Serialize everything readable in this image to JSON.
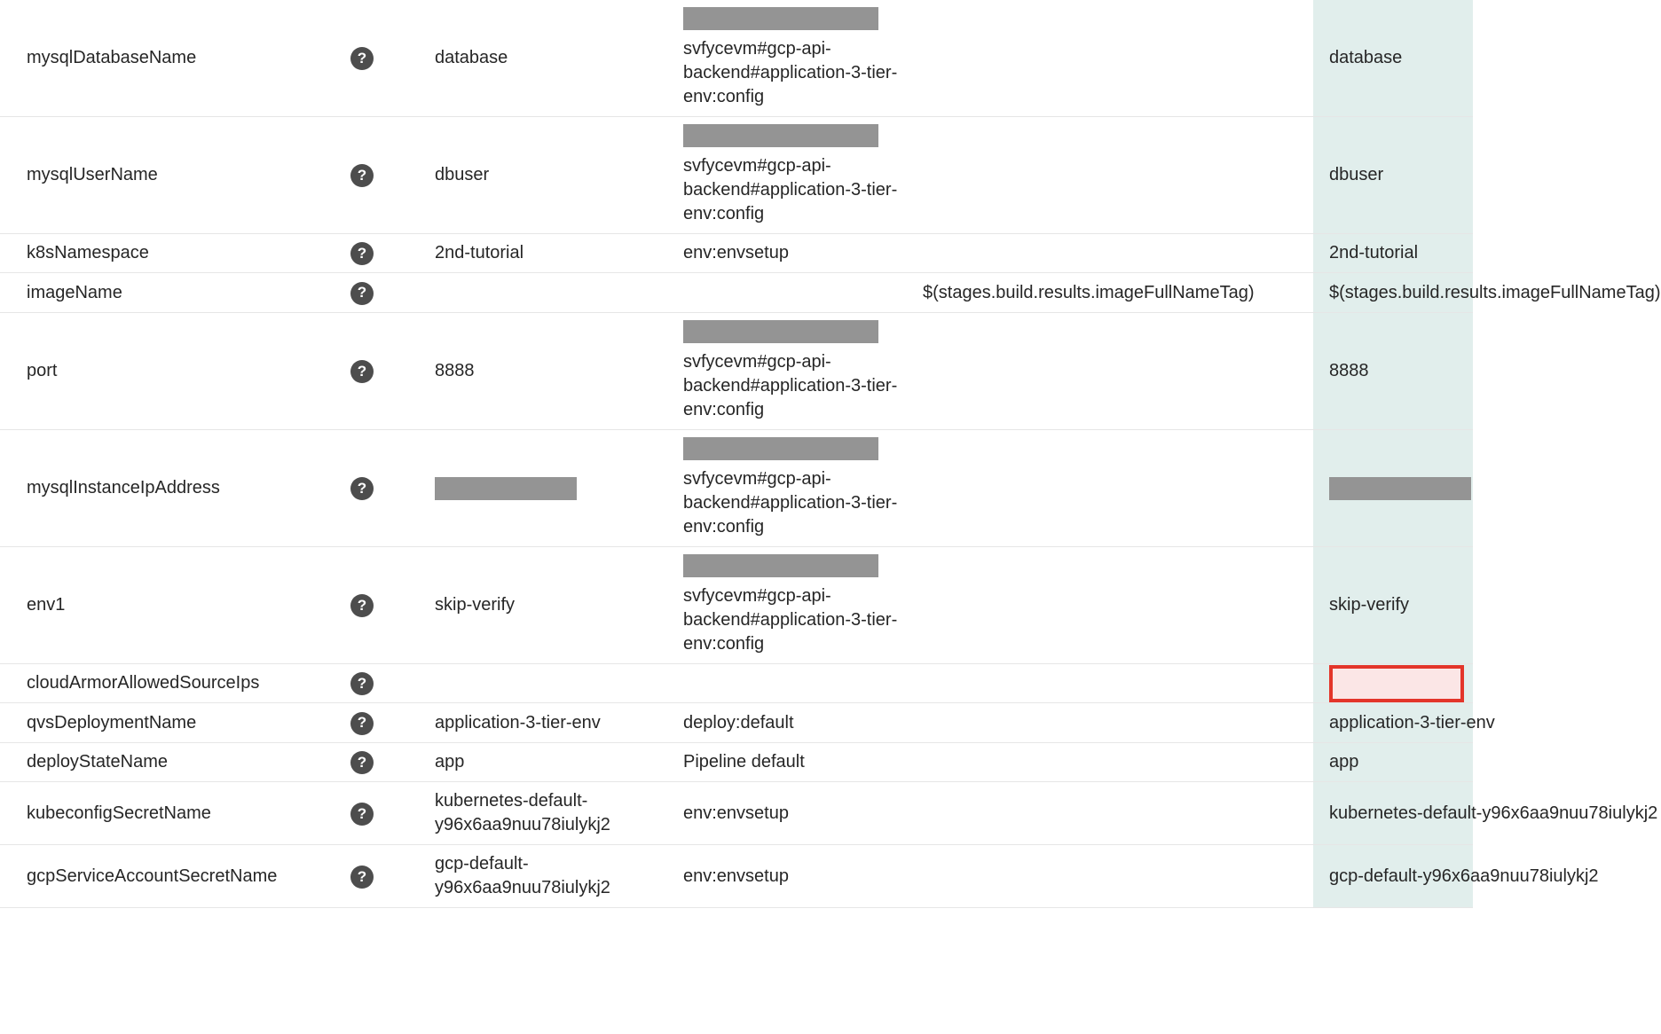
{
  "colors": {
    "row_border": "#e6e6e6",
    "help_bg": "#4d4d4d",
    "help_fg": "#ffffff",
    "redact_bg": "#949494",
    "final_bg": "#e1eeec",
    "error_border": "#e3352a",
    "error_bg": "#fbe6e6",
    "text": "#262626"
  },
  "columns": [
    "name",
    "help",
    "value",
    "source",
    "expression",
    "final"
  ],
  "rows": [
    {
      "name": "mysqlDatabaseName",
      "value": "database",
      "source_redacted": true,
      "source": "svfycevm#gcp-api-backend#application-3-tier-env:config",
      "final": "database"
    },
    {
      "name": "mysqlUserName",
      "value": "dbuser",
      "source_redacted": true,
      "source": "svfycevm#gcp-api-backend#application-3-tier-env:config",
      "final": "dbuser"
    },
    {
      "name": "k8sNamespace",
      "value": "2nd-tutorial",
      "source": "env:envsetup",
      "final": "2nd-tutorial"
    },
    {
      "name": "imageName",
      "value": "",
      "source": "",
      "expression": "$(stages.build.results.imageFullNameTag)",
      "final": "$(stages.build.results.imageFullNameTag)"
    },
    {
      "name": "port",
      "value": "8888",
      "source_redacted": true,
      "source": "svfycevm#gcp-api-backend#application-3-tier-env:config",
      "final": "8888"
    },
    {
      "name": "mysqlInstanceIpAddress",
      "value_redacted": true,
      "source_redacted": true,
      "source": "svfycevm#gcp-api-backend#application-3-tier-env:config",
      "final_redacted": true
    },
    {
      "name": "env1",
      "value": "skip-verify",
      "source_redacted": true,
      "source": "svfycevm#gcp-api-backend#application-3-tier-env:config",
      "final": "skip-verify"
    },
    {
      "name": "cloudArmorAllowedSourceIps",
      "value": "",
      "source": "",
      "final_error": true
    },
    {
      "name": "qvsDeploymentName",
      "value": "application-3-tier-env",
      "source": "deploy:default",
      "final": "application-3-tier-env"
    },
    {
      "name": "deployStateName",
      "value": "app",
      "source": "Pipeline default",
      "final": "app"
    },
    {
      "name": "kubeconfigSecretName",
      "value": "kubernetes-default-y96x6aa9nuu78iulykj2",
      "source": "env:envsetup",
      "final": "kubernetes-default-y96x6aa9nuu78iulykj2"
    },
    {
      "name": "gcpServiceAccountSecretName",
      "value": "gcp-default-y96x6aa9nuu78iulykj2",
      "source": "env:envsetup",
      "final": "gcp-default-y96x6aa9nuu78iulykj2"
    }
  ]
}
